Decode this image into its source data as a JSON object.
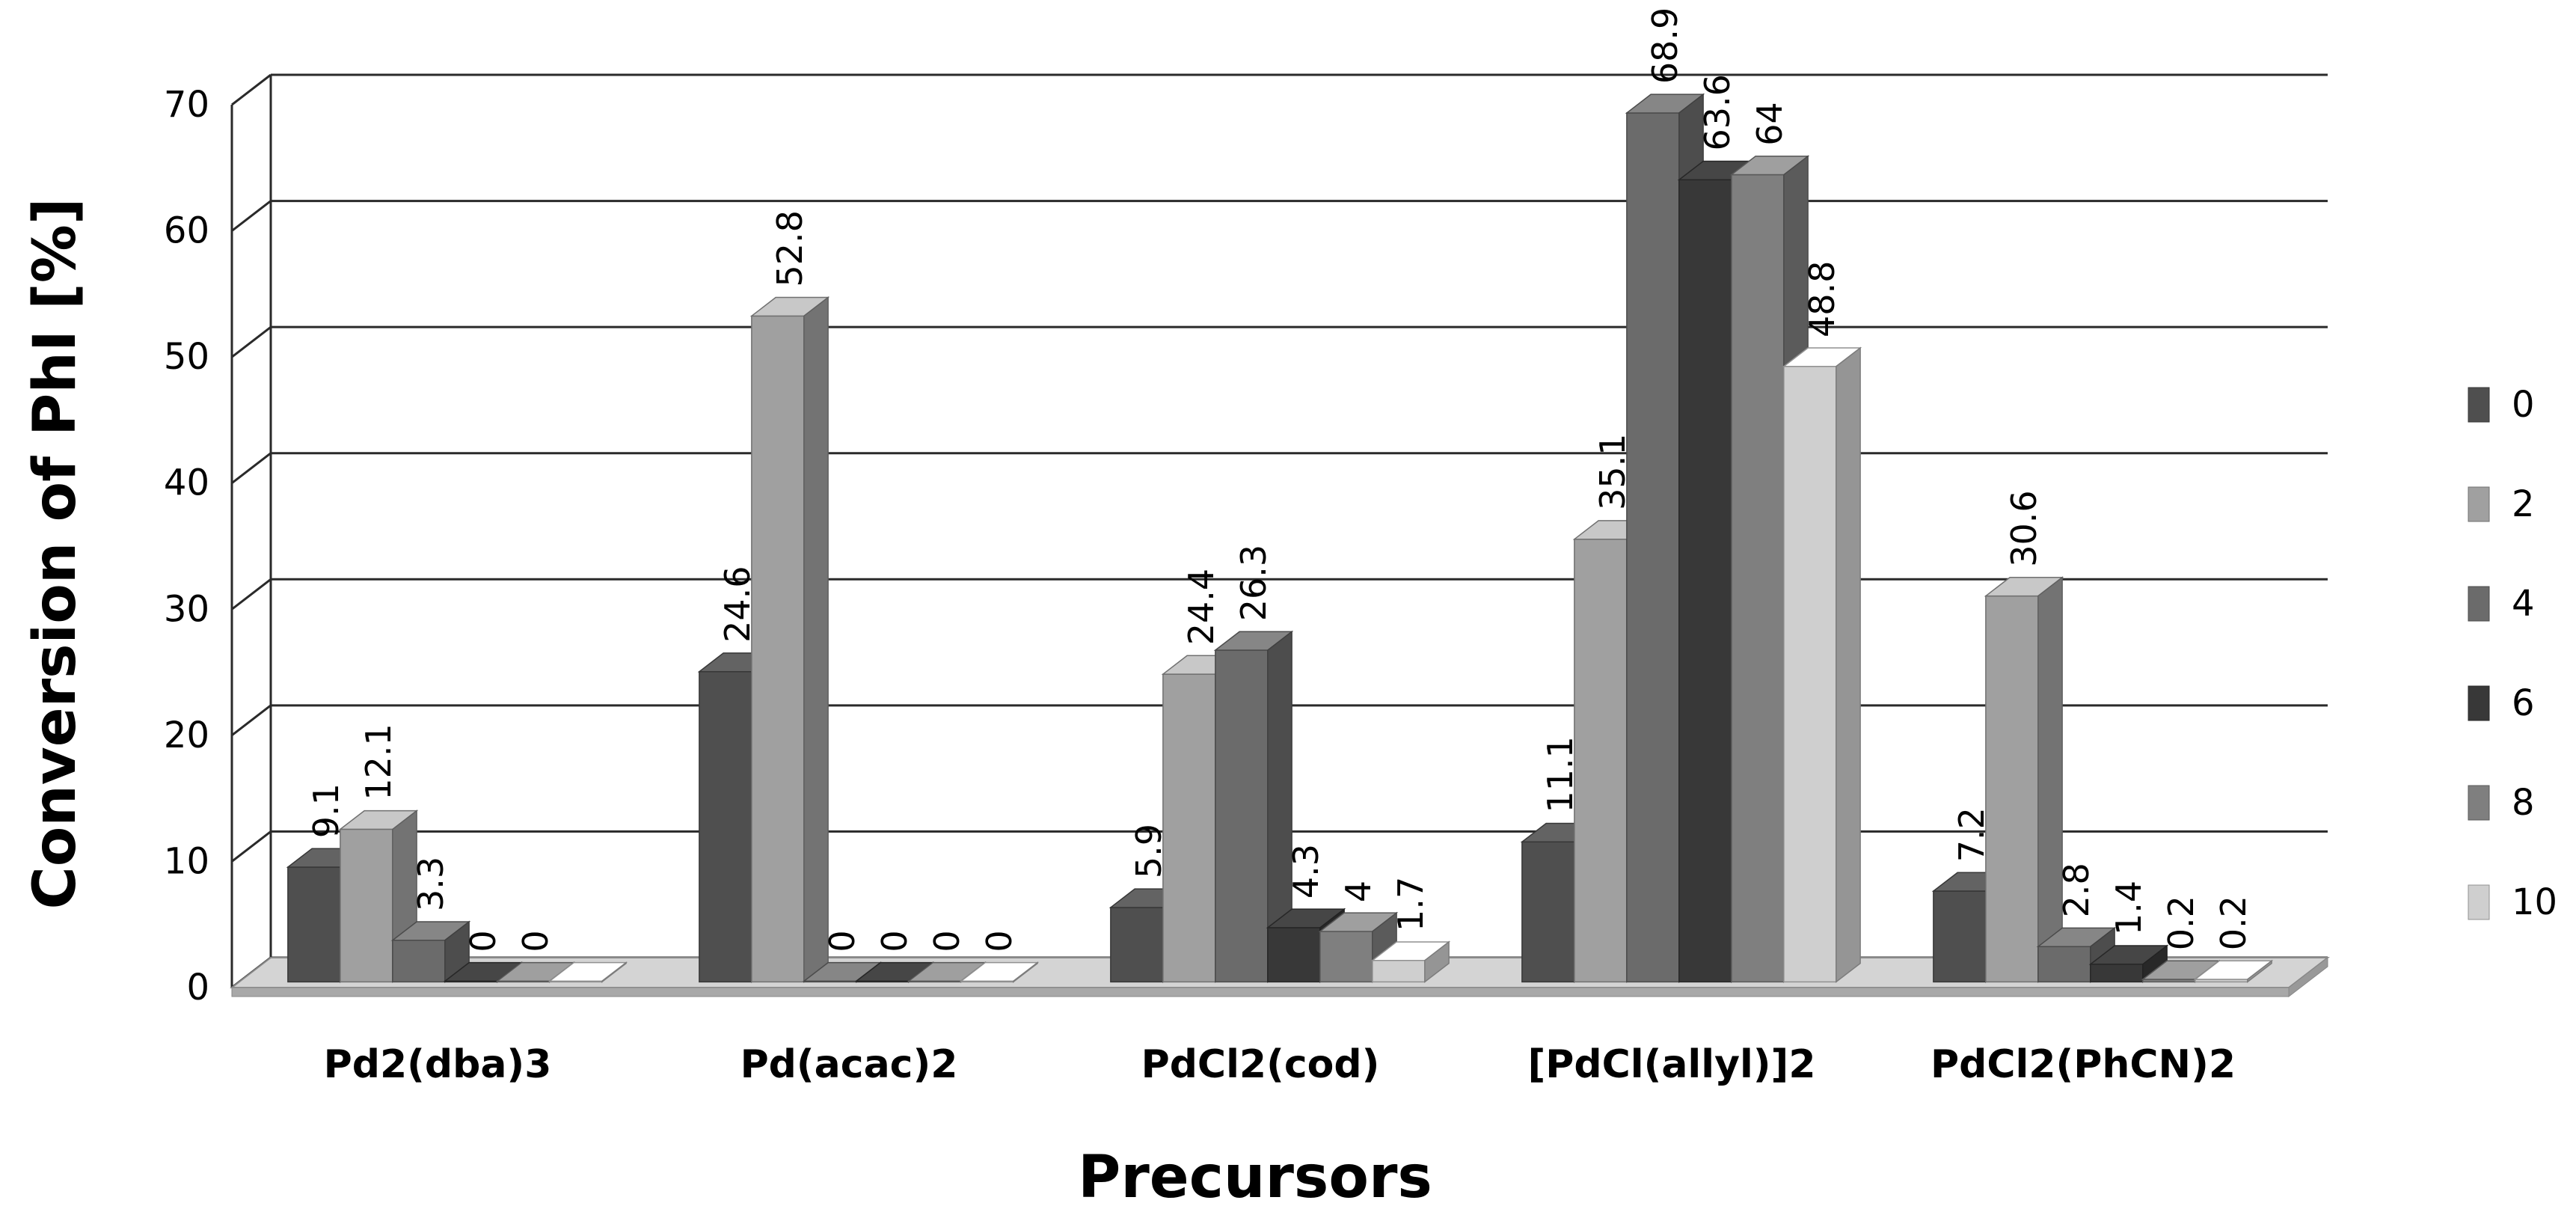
{
  "chart_data": {
    "type": "bar",
    "xlabel": "Precursors",
    "ylabel": "Conversion of PhI  [%]",
    "ylim": [
      0,
      70
    ],
    "yticks": [
      0,
      10,
      20,
      30,
      40,
      50,
      60,
      70
    ],
    "grid": true,
    "legend_position": "right",
    "categories": [
      "Pd2(dba)3",
      "Pd(acac)2",
      "PdCl2(cod)",
      "[PdCl(allyl)]2",
      "PdCl2(PhCN)2"
    ],
    "series": [
      {
        "name": "0",
        "color": "#4f4f4f",
        "values": [
          9.1,
          24.6,
          5.9,
          11.1,
          7.2
        ]
      },
      {
        "name": "2",
        "color": "#a0a0a0",
        "values": [
          12.1,
          52.8,
          24.4,
          35.1,
          30.6
        ]
      },
      {
        "name": "4",
        "color": "#6b6b6b",
        "values": [
          3.3,
          0,
          26.3,
          68.9,
          2.8
        ]
      },
      {
        "name": "6",
        "color": "#383838",
        "values": [
          0,
          0,
          4.3,
          63.6,
          1.4
        ]
      },
      {
        "name": "8",
        "color": "#7f7f7f",
        "values": [
          0,
          0,
          4,
          64,
          0.2
        ]
      },
      {
        "name": "10",
        "color": "#cfcfcf",
        "values": [
          0,
          0,
          1.7,
          48.8,
          0.2
        ]
      }
    ],
    "data_labels": [
      [
        "9.1",
        "24.6",
        "5.9",
        "11.1",
        "7.2"
      ],
      [
        "12.1",
        "52.8",
        "24.4",
        "35.1",
        "30.6"
      ],
      [
        "3.3",
        "0",
        "26.3",
        "68.9",
        "2.8"
      ],
      [
        "0",
        "0",
        "4.3",
        "63.6",
        "1.4"
      ],
      [
        "0",
        "0",
        "4",
        "64",
        "0.2"
      ],
      [
        "",
        "0",
        "1.7",
        "48.8",
        "0.2"
      ]
    ]
  }
}
